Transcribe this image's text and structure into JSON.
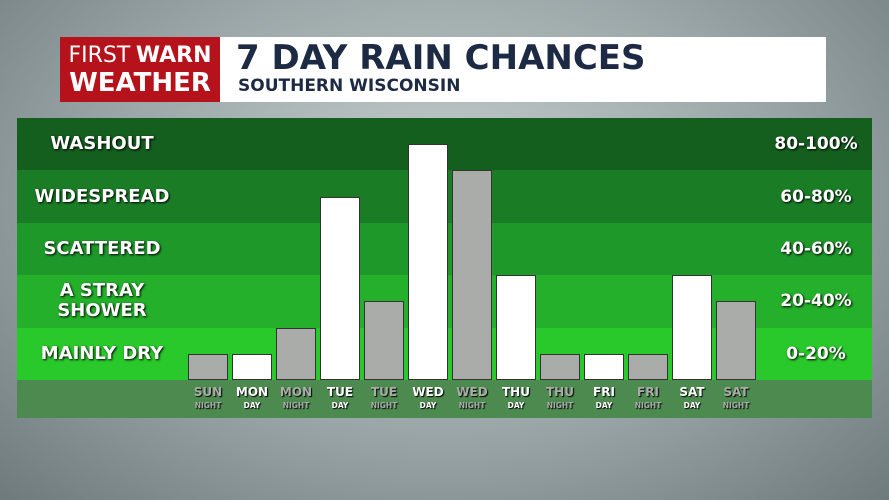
{
  "header": {
    "logo_first": "FIRST",
    "logo_warn": "WARN",
    "logo_weather": "WEATHER",
    "title": "7 DAY RAIN CHANCES",
    "subtitle": "SOUTHERN WISCONSIN"
  },
  "chart_data": {
    "type": "bar",
    "categories": [
      "SUN",
      "MON",
      "MON",
      "TUE",
      "TUE",
      "WED",
      "WED",
      "THU",
      "THU",
      "FRI",
      "FRI",
      "SAT",
      "SAT"
    ],
    "periods": [
      "NIGHT",
      "DAY",
      "NIGHT",
      "DAY",
      "NIGHT",
      "DAY",
      "NIGHT",
      "DAY",
      "NIGHT",
      "DAY",
      "NIGHT",
      "DAY",
      "NIGHT"
    ],
    "values": [
      10,
      10,
      20,
      70,
      30,
      90,
      80,
      40,
      10,
      10,
      10,
      40,
      30
    ],
    "colors": [
      "#a9aca9",
      "#ffffff",
      "#a9aca9",
      "#ffffff",
      "#a9aca9",
      "#ffffff",
      "#a9aca9",
      "#ffffff",
      "#a9aca9",
      "#ffffff",
      "#a9aca9",
      "#ffffff",
      "#a9aca9"
    ],
    "ylim": [
      0,
      100
    ],
    "yticks": [
      0,
      20,
      40,
      60,
      80,
      100
    ],
    "bands": [
      {
        "name": "MAINLY DRY",
        "range": "0-20%",
        "color": "#29c92b"
      },
      {
        "name": "A STRAY\nSHOWER",
        "range": "20-40%",
        "color": "#24b02a"
      },
      {
        "name": "SCATTERED",
        "range": "40-60%",
        "color": "#1f982a"
      },
      {
        "name": "WIDESPREAD",
        "range": "60-80%",
        "color": "#1a7d26"
      },
      {
        "name": "WASHOUT",
        "range": "80-100%",
        "color": "#145e1e"
      }
    ]
  }
}
